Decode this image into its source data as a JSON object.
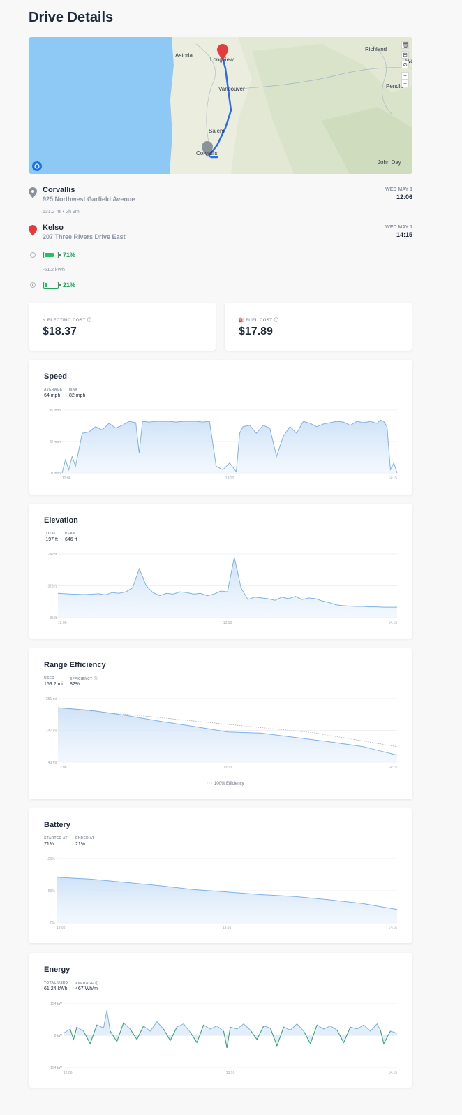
{
  "page": {
    "title": "Drive Details"
  },
  "map": {
    "labels": [
      "Astoria",
      "Longview",
      "Vancouver",
      "Salem",
      "Corvallis",
      "Richland",
      "Pendle",
      "John Day",
      "Walla"
    ],
    "controls": [
      "🗑",
      "⊞",
      "⊘",
      "+",
      "−"
    ]
  },
  "start": {
    "name": "Corvallis",
    "address": "925 Northwest Garfield Avenue",
    "day": "WED MAY 1",
    "time": "12:06"
  },
  "trip_summary": "131.2 mi • 2h 9m",
  "end": {
    "name": "Kelso",
    "address": "207 Three Rivers Drive East",
    "day": "WED MAY 1",
    "time": "14:15"
  },
  "battery_summary": {
    "start_pct": "71%",
    "start_level": 0.71,
    "energy": "-61.2 kWh",
    "end_pct": "21%",
    "end_level": 0.21
  },
  "costs": {
    "electric_label": "ELECTRIC COST",
    "electric_value": "$18.37",
    "fuel_label": "FUEL COST",
    "fuel_value": "$17.89"
  },
  "speed": {
    "title": "Speed",
    "stats": [
      {
        "label": "AVERAGE",
        "value": "64 mph"
      },
      {
        "label": "MAX",
        "value": "82 mph"
      }
    ]
  },
  "elevation": {
    "title": "Elevation",
    "stats": [
      {
        "label": "TOTAL",
        "value": "-197 ft"
      },
      {
        "label": "PEAK",
        "value": "646 ft"
      }
    ]
  },
  "range": {
    "title": "Range Efficiency",
    "stats": [
      {
        "label": "USED",
        "value": "159.2 mi"
      },
      {
        "label": "EFFICIENCY",
        "value": "82%"
      }
    ],
    "legend": "100% Efficiency"
  },
  "battery": {
    "title": "Battery",
    "stats": [
      {
        "label": "STARTED AT",
        "value": "71%"
      },
      {
        "label": "ENDED AT",
        "value": "21%"
      }
    ]
  },
  "energy": {
    "title": "Energy",
    "stats": [
      {
        "label": "TOTAL USED",
        "value": "61.24 kWh"
      },
      {
        "label": "AVERAGE",
        "value": "467 Wh/mi"
      }
    ]
  },
  "chart_data": [
    {
      "type": "area",
      "title": "Speed",
      "unit": "mph",
      "x_ticks": [
        "12:06",
        "13:10",
        "14:15"
      ],
      "y_ticks": [
        "0 mph",
        "48 mph",
        "95 mph"
      ],
      "ylim": [
        0,
        95
      ],
      "x": [
        0,
        1,
        2,
        3,
        4,
        5,
        6,
        8,
        10,
        12,
        14,
        16,
        18,
        20,
        22,
        23,
        24,
        26,
        28,
        30,
        32,
        34,
        36,
        38,
        40,
        42,
        44,
        46,
        48,
        50,
        52,
        53,
        54,
        56,
        58,
        60,
        62,
        64,
        66,
        68,
        70,
        72,
        74,
        76,
        78,
        80,
        82,
        84,
        86,
        88,
        90,
        92,
        94,
        95,
        96,
        97,
        98,
        99,
        100
      ],
      "values": [
        0,
        20,
        5,
        25,
        10,
        35,
        60,
        62,
        70,
        65,
        75,
        68,
        72,
        78,
        76,
        30,
        78,
        77,
        78,
        78,
        78,
        77,
        78,
        78,
        78,
        77,
        78,
        10,
        5,
        15,
        2,
        60,
        70,
        72,
        60,
        72,
        68,
        25,
        55,
        70,
        60,
        78,
        75,
        70,
        74,
        76,
        78,
        77,
        72,
        78,
        76,
        78,
        75,
        80,
        78,
        70,
        5,
        15,
        0
      ]
    },
    {
      "type": "area",
      "title": "Elevation",
      "unit": "ft",
      "x_ticks": [
        "12:06",
        "13:10",
        "14:15"
      ],
      "y_ticks": [
        "-85 ft",
        "328 ft",
        "742 ft"
      ],
      "ylim": [
        -85,
        742
      ],
      "x": [
        0,
        4,
        8,
        12,
        14,
        16,
        18,
        20,
        22,
        24,
        26,
        28,
        30,
        32,
        34,
        36,
        38,
        40,
        42,
        44,
        46,
        48,
        50,
        52,
        54,
        56,
        58,
        60,
        62,
        64,
        66,
        68,
        70,
        72,
        74,
        76,
        78,
        80,
        82,
        84,
        86,
        88,
        90,
        92,
        94,
        96,
        98,
        100
      ],
      "values": [
        230,
        220,
        215,
        225,
        210,
        240,
        230,
        250,
        300,
        550,
        330,
        240,
        200,
        230,
        220,
        250,
        240,
        220,
        230,
        200,
        220,
        260,
        250,
        700,
        300,
        150,
        180,
        170,
        160,
        140,
        180,
        160,
        190,
        150,
        170,
        160,
        130,
        110,
        80,
        70,
        65,
        60,
        60,
        55,
        55,
        50,
        50,
        50
      ]
    },
    {
      "type": "area",
      "title": "Range Efficiency",
      "unit": "mi",
      "x_ticks": [
        "12:06",
        "13:10",
        "14:15"
      ],
      "y_ticks": [
        "43 mi",
        "147 mi",
        "251 mi"
      ],
      "ylim": [
        43,
        251
      ],
      "x": [
        0,
        10,
        20,
        30,
        40,
        50,
        60,
        70,
        80,
        90,
        95,
        100
      ],
      "values": [
        221,
        212,
        196,
        177,
        160,
        142,
        138,
        124,
        110,
        94,
        80,
        66
      ],
      "series": [
        {
          "name": "100% Efficiency",
          "x": [
            0,
            25,
            50,
            75,
            100
          ],
          "values": [
            221,
            194,
            167,
            140,
            94
          ]
        }
      ]
    },
    {
      "type": "area",
      "title": "Battery",
      "unit": "%",
      "x_ticks": [
        "12:06",
        "13:10",
        "14:15"
      ],
      "y_ticks": [
        "0%",
        "50%",
        "100%"
      ],
      "ylim": [
        0,
        100
      ],
      "x": [
        0,
        10,
        20,
        30,
        40,
        50,
        60,
        70,
        80,
        90,
        100
      ],
      "values": [
        71,
        68,
        63,
        58,
        52,
        48,
        44,
        41,
        36,
        30,
        21
      ]
    },
    {
      "type": "line",
      "title": "Energy",
      "unit": "kW",
      "x_ticks": [
        "12:06",
        "13:10",
        "14:15"
      ],
      "y_ticks": [
        "-154 kW",
        "0 kW",
        "154 kW"
      ],
      "ylim": [
        -154,
        154
      ],
      "x": [
        0,
        2,
        3,
        4,
        6,
        8,
        10,
        12,
        13,
        14,
        16,
        18,
        20,
        22,
        24,
        26,
        28,
        30,
        32,
        34,
        36,
        38,
        40,
        42,
        44,
        46,
        48,
        49,
        50,
        52,
        54,
        56,
        58,
        60,
        62,
        64,
        66,
        68,
        70,
        72,
        74,
        76,
        78,
        80,
        82,
        84,
        86,
        88,
        90,
        92,
        94,
        95,
        96,
        98,
        100
      ],
      "values": [
        10,
        30,
        -20,
        40,
        20,
        -40,
        50,
        35,
        120,
        20,
        -30,
        60,
        30,
        -20,
        45,
        20,
        65,
        30,
        -25,
        40,
        55,
        15,
        -35,
        50,
        30,
        45,
        20,
        -60,
        40,
        30,
        55,
        25,
        -20,
        45,
        35,
        -50,
        40,
        25,
        55,
        20,
        -40,
        50,
        30,
        45,
        25,
        -35,
        40,
        30,
        50,
        20,
        55,
        25,
        -40,
        20,
        10
      ]
    }
  ]
}
